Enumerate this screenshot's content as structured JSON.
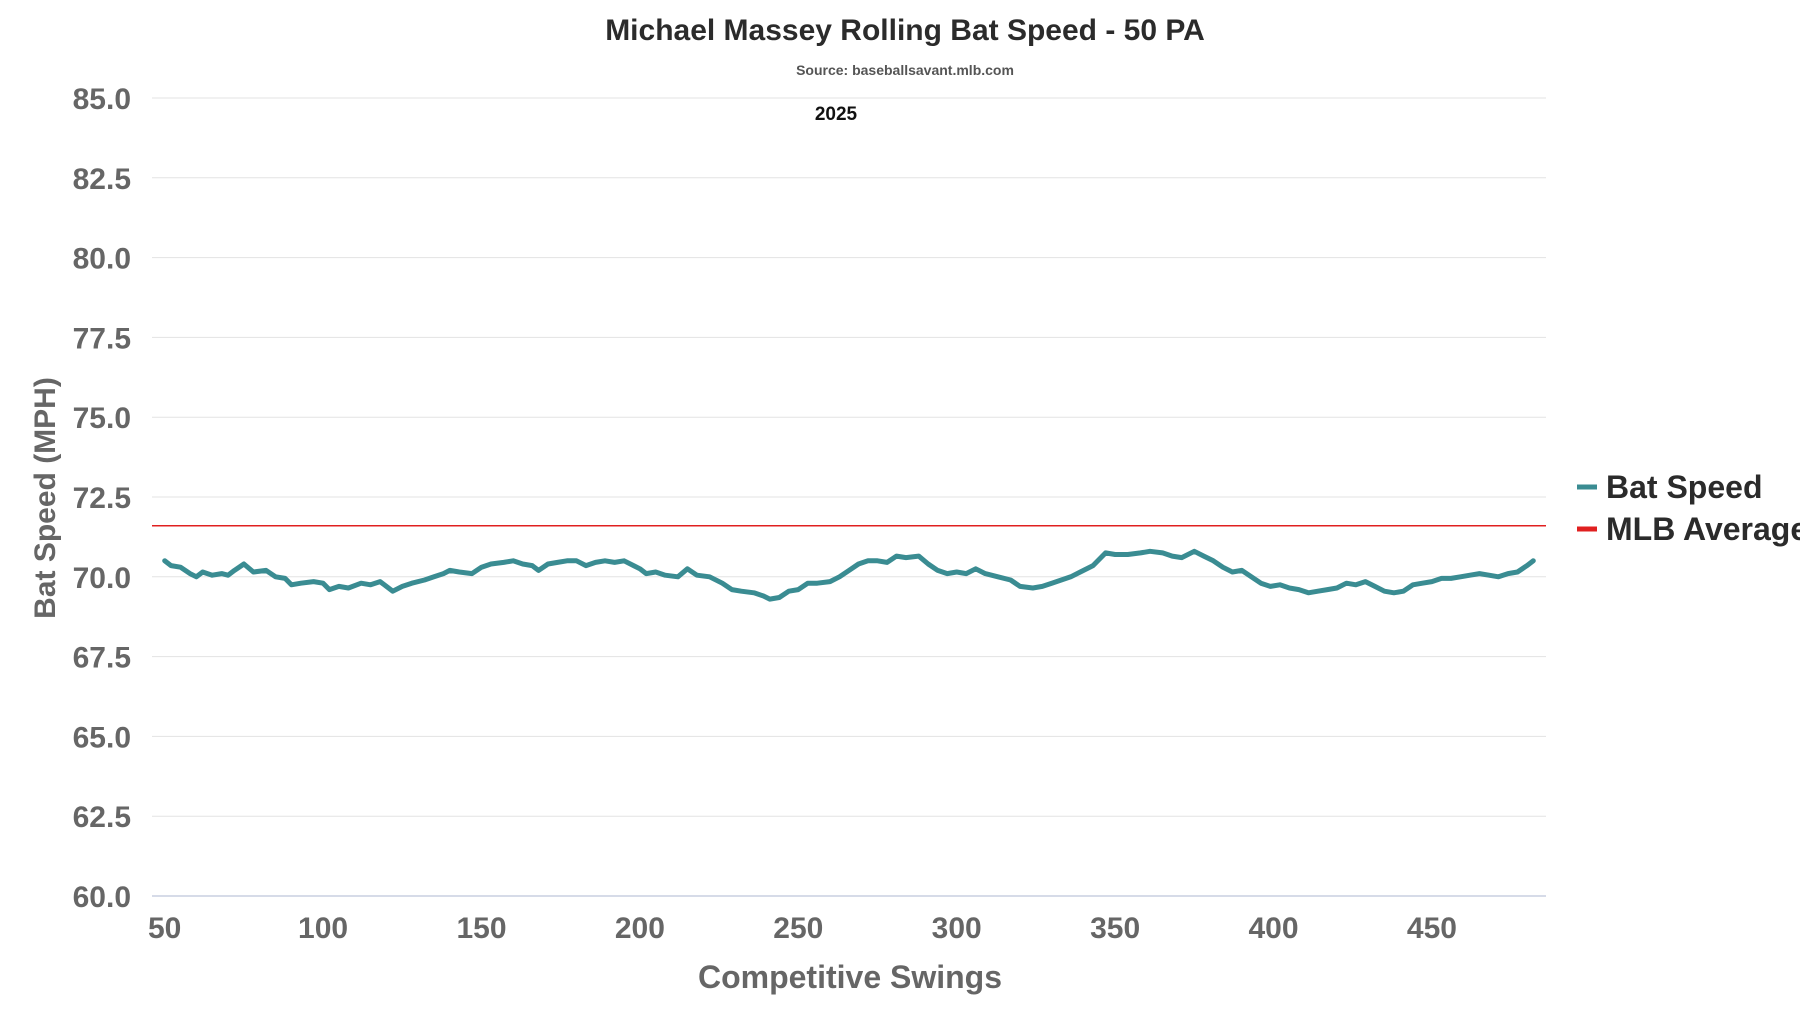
{
  "chart_data": {
    "type": "line",
    "title": "Michael Massey Rolling Bat Speed - 50 PA",
    "subtitle": "Source: baseballsavant.mlb.com",
    "annotation": "2025",
    "xlabel": "Competitive Swings",
    "ylabel": "Bat Speed (MPH)",
    "xlim": [
      46,
      486
    ],
    "ylim": [
      60,
      85
    ],
    "x_ticks": [
      50,
      100,
      150,
      200,
      250,
      300,
      350,
      400,
      450
    ],
    "y_ticks": [
      "60.0",
      "62.5",
      "65.0",
      "67.5",
      "70.0",
      "72.5",
      "75.0",
      "77.5",
      "80.0",
      "82.5",
      "85.0"
    ],
    "grid": true,
    "legend_position": "right",
    "series": [
      {
        "name": "Bat Speed",
        "color": "#3a8c92",
        "points": [
          [
            50,
            70.5
          ],
          [
            52,
            70.35
          ],
          [
            55,
            70.3
          ],
          [
            58,
            70.1
          ],
          [
            60,
            70.0
          ],
          [
            62,
            70.15
          ],
          [
            65,
            70.05
          ],
          [
            68,
            70.1
          ],
          [
            70,
            70.05
          ],
          [
            72,
            70.2
          ],
          [
            75,
            70.4
          ],
          [
            78,
            70.15
          ],
          [
            82,
            70.2
          ],
          [
            85,
            70.0
          ],
          [
            88,
            69.95
          ],
          [
            90,
            69.75
          ],
          [
            93,
            69.8
          ],
          [
            97,
            69.85
          ],
          [
            100,
            69.8
          ],
          [
            102,
            69.6
          ],
          [
            105,
            69.7
          ],
          [
            108,
            69.65
          ],
          [
            112,
            69.8
          ],
          [
            115,
            69.75
          ],
          [
            118,
            69.85
          ],
          [
            120,
            69.7
          ],
          [
            122,
            69.55
          ],
          [
            125,
            69.7
          ],
          [
            128,
            69.8
          ],
          [
            132,
            69.9
          ],
          [
            135,
            70.0
          ],
          [
            138,
            70.1
          ],
          [
            140,
            70.2
          ],
          [
            143,
            70.15
          ],
          [
            147,
            70.1
          ],
          [
            150,
            70.3
          ],
          [
            153,
            70.4
          ],
          [
            157,
            70.45
          ],
          [
            160,
            70.5
          ],
          [
            163,
            70.4
          ],
          [
            166,
            70.35
          ],
          [
            168,
            70.2
          ],
          [
            171,
            70.4
          ],
          [
            174,
            70.45
          ],
          [
            177,
            70.5
          ],
          [
            180,
            70.5
          ],
          [
            183,
            70.35
          ],
          [
            186,
            70.45
          ],
          [
            189,
            70.5
          ],
          [
            192,
            70.45
          ],
          [
            195,
            70.5
          ],
          [
            198,
            70.35
          ],
          [
            200,
            70.25
          ],
          [
            202,
            70.1
          ],
          [
            205,
            70.15
          ],
          [
            208,
            70.05
          ],
          [
            212,
            70.0
          ],
          [
            215,
            70.25
          ],
          [
            218,
            70.05
          ],
          [
            222,
            70.0
          ],
          [
            226,
            69.8
          ],
          [
            229,
            69.6
          ],
          [
            232,
            69.55
          ],
          [
            236,
            69.5
          ],
          [
            239,
            69.4
          ],
          [
            241,
            69.3
          ],
          [
            244,
            69.35
          ],
          [
            247,
            69.55
          ],
          [
            250,
            69.6
          ],
          [
            253,
            69.8
          ],
          [
            256,
            69.8
          ],
          [
            260,
            69.85
          ],
          [
            263,
            70.0
          ],
          [
            266,
            70.2
          ],
          [
            269,
            70.4
          ],
          [
            272,
            70.5
          ],
          [
            275,
            70.5
          ],
          [
            278,
            70.45
          ],
          [
            281,
            70.65
          ],
          [
            284,
            70.6
          ],
          [
            288,
            70.65
          ],
          [
            291,
            70.4
          ],
          [
            294,
            70.2
          ],
          [
            297,
            70.1
          ],
          [
            300,
            70.15
          ],
          [
            303,
            70.1
          ],
          [
            306,
            70.25
          ],
          [
            309,
            70.1
          ],
          [
            313,
            70.0
          ],
          [
            317,
            69.9
          ],
          [
            320,
            69.7
          ],
          [
            324,
            69.65
          ],
          [
            327,
            69.7
          ],
          [
            330,
            69.8
          ],
          [
            333,
            69.9
          ],
          [
            336,
            70.0
          ],
          [
            339,
            70.15
          ],
          [
            343,
            70.35
          ],
          [
            347,
            70.75
          ],
          [
            350,
            70.7
          ],
          [
            354,
            70.7
          ],
          [
            358,
            70.75
          ],
          [
            361,
            70.8
          ],
          [
            365,
            70.75
          ],
          [
            368,
            70.65
          ],
          [
            371,
            70.6
          ],
          [
            375,
            70.8
          ],
          [
            378,
            70.65
          ],
          [
            381,
            70.5
          ],
          [
            384,
            70.3
          ],
          [
            387,
            70.15
          ],
          [
            390,
            70.2
          ],
          [
            393,
            70.0
          ],
          [
            396,
            69.8
          ],
          [
            399,
            69.7
          ],
          [
            402,
            69.75
          ],
          [
            405,
            69.65
          ],
          [
            408,
            69.6
          ],
          [
            411,
            69.5
          ],
          [
            414,
            69.55
          ],
          [
            417,
            69.6
          ],
          [
            420,
            69.65
          ],
          [
            423,
            69.8
          ],
          [
            426,
            69.75
          ],
          [
            429,
            69.85
          ],
          [
            432,
            69.7
          ],
          [
            435,
            69.55
          ],
          [
            438,
            69.5
          ],
          [
            441,
            69.55
          ],
          [
            444,
            69.75
          ],
          [
            447,
            69.8
          ],
          [
            450,
            69.85
          ],
          [
            453,
            69.95
          ],
          [
            456,
            69.95
          ],
          [
            459,
            70.0
          ],
          [
            462,
            70.05
          ],
          [
            465,
            70.1
          ],
          [
            468,
            70.05
          ],
          [
            471,
            70.0
          ],
          [
            474,
            70.1
          ],
          [
            477,
            70.15
          ],
          [
            480,
            70.35
          ],
          [
            482,
            70.5
          ]
        ]
      },
      {
        "name": "MLB Average",
        "color": "#e02020",
        "constant": 71.6
      }
    ]
  }
}
